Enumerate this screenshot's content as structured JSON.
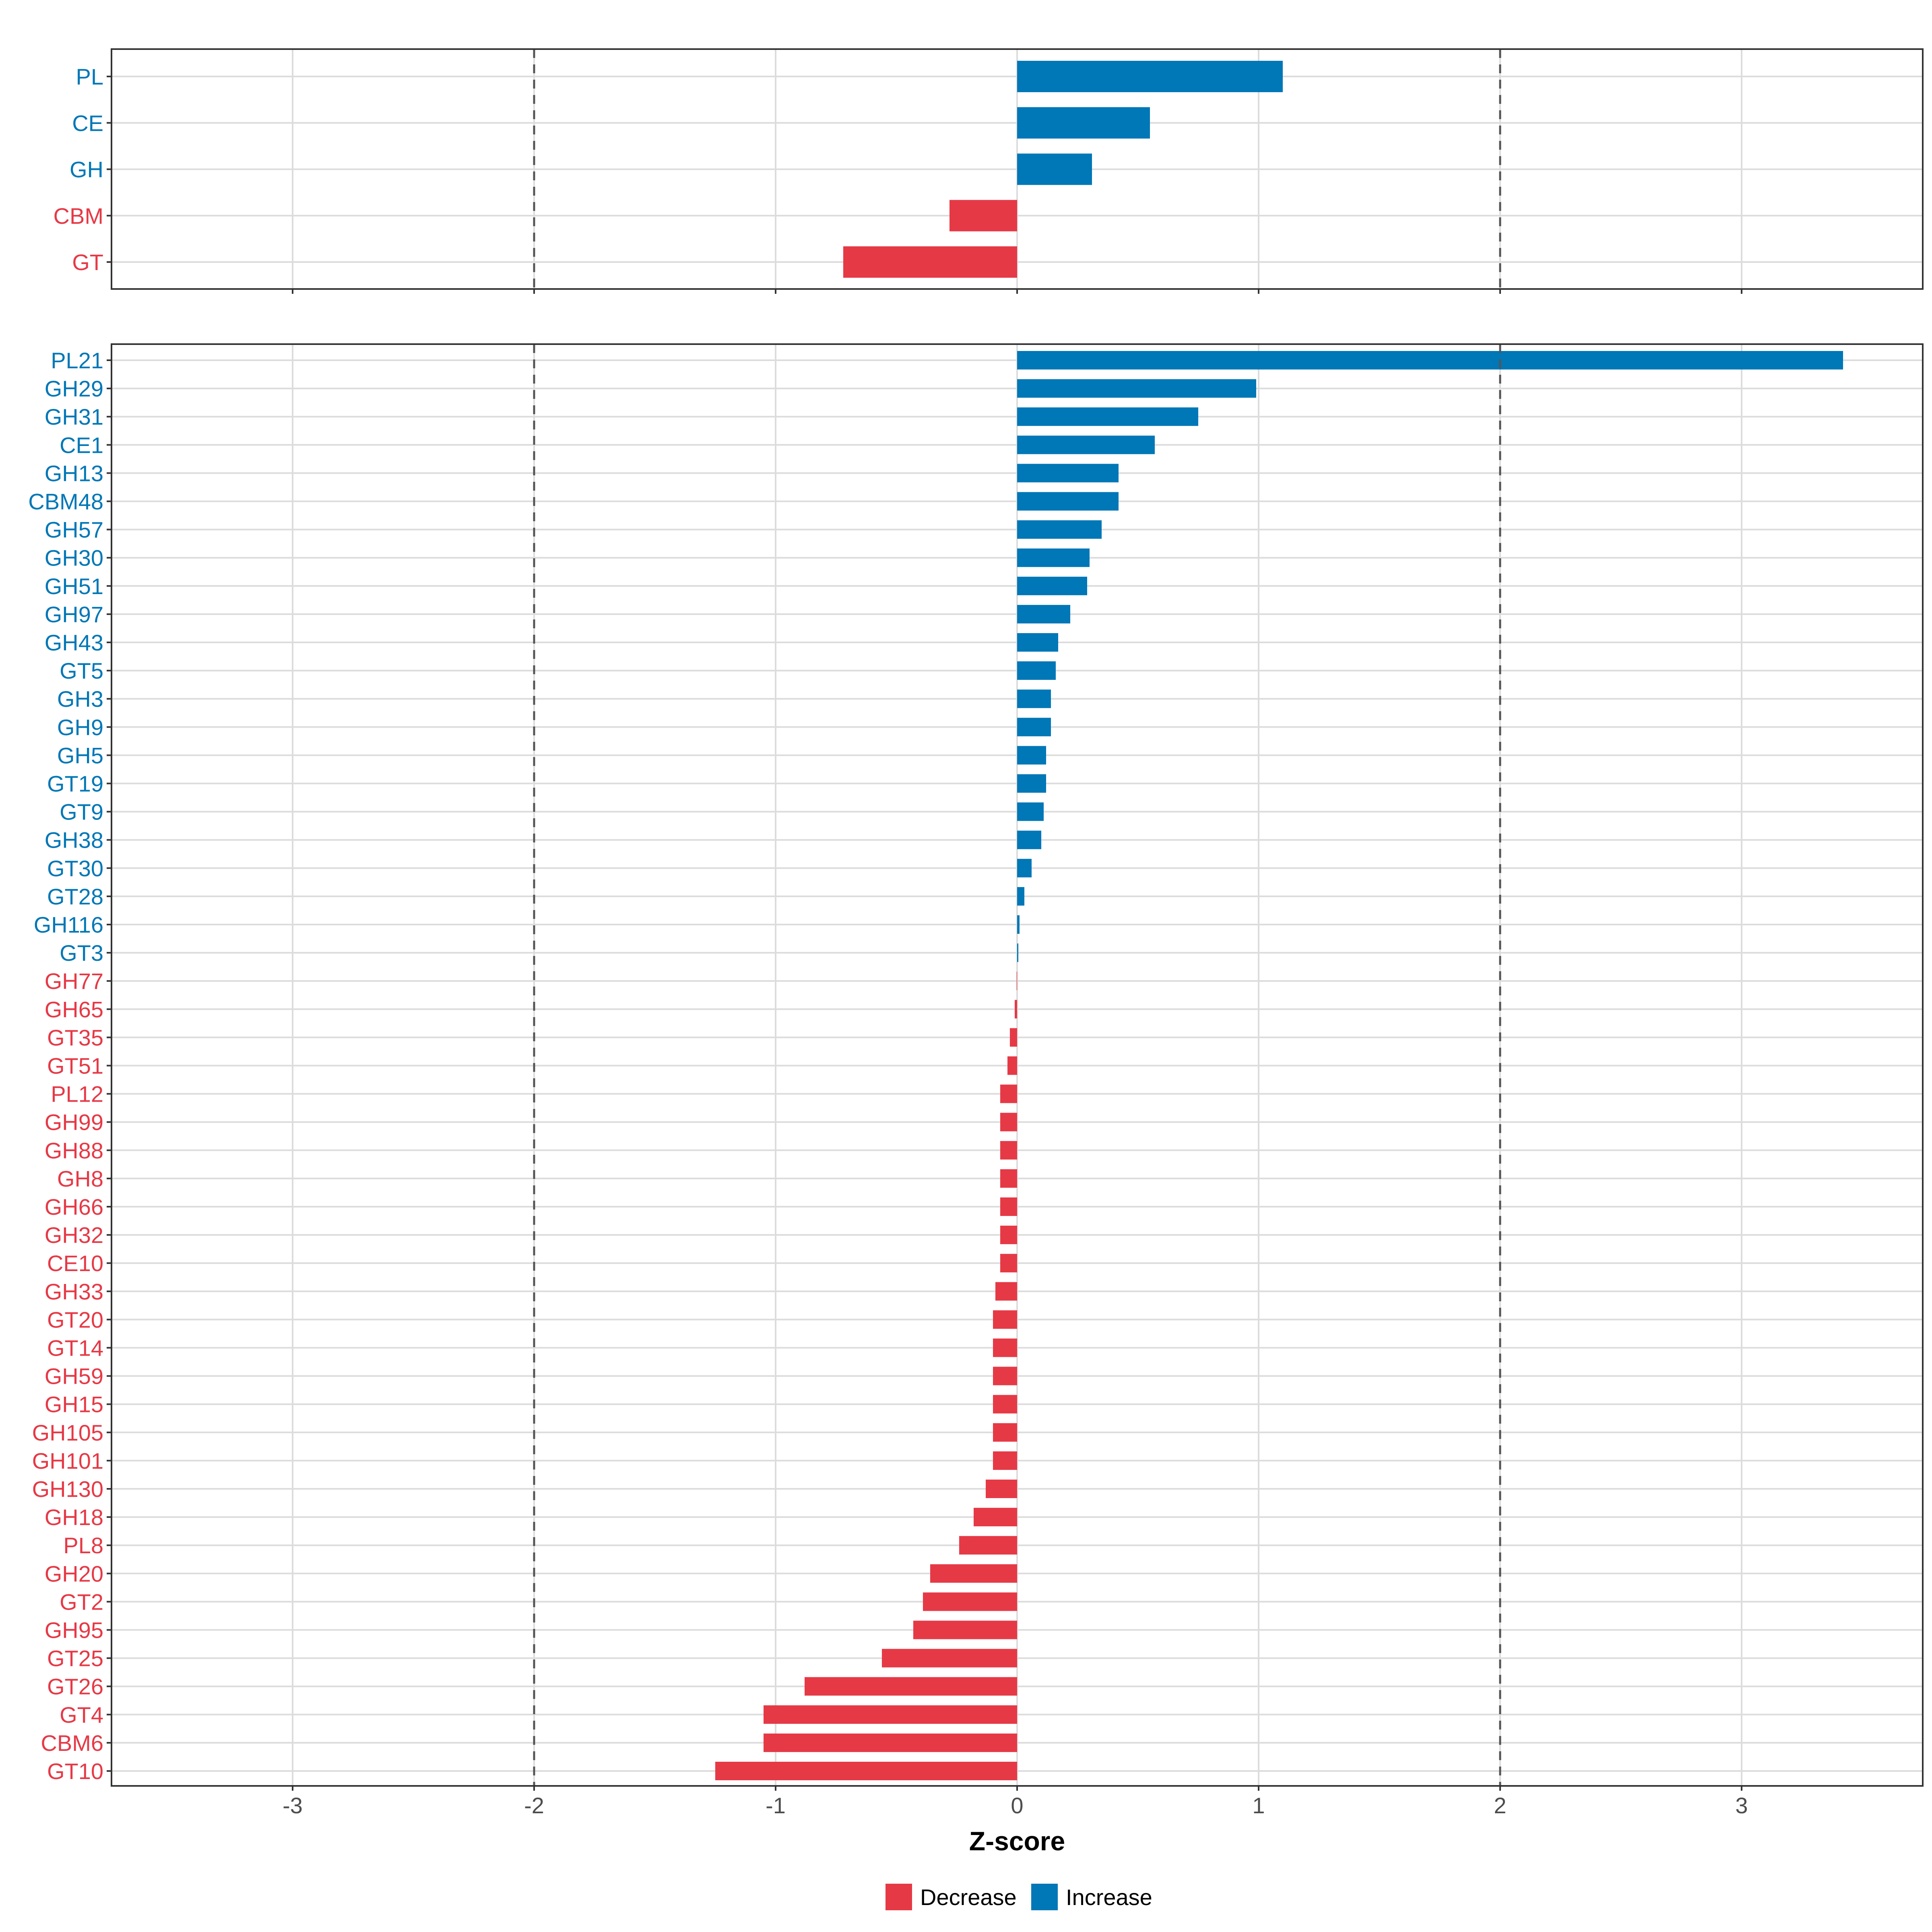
{
  "chart_data": [
    {
      "type": "bar",
      "orientation": "horizontal",
      "panel": "top",
      "categories": [
        "PL",
        "CE",
        "GH",
        "CBM",
        "GT"
      ],
      "values": [
        1.1,
        0.55,
        0.31,
        -0.28,
        -0.72
      ],
      "xlim": [
        -3.75,
        3.75
      ],
      "reference_lines": [
        -2,
        2
      ],
      "grid": true
    },
    {
      "type": "bar",
      "orientation": "horizontal",
      "panel": "bottom",
      "categories": [
        "PL21",
        "GH29",
        "GH31",
        "CE1",
        "GH13",
        "CBM48",
        "GH57",
        "GH30",
        "GH51",
        "GH97",
        "GH43",
        "GT5",
        "GH3",
        "GH9",
        "GH5",
        "GT19",
        "GT9",
        "GH38",
        "GT30",
        "GT28",
        "GH116",
        "GT3",
        "GH77",
        "GH65",
        "GT35",
        "GT51",
        "PL12",
        "GH99",
        "GH88",
        "GH8",
        "GH66",
        "GH32",
        "CE10",
        "GH33",
        "GT20",
        "GT14",
        "GH59",
        "GH15",
        "GH105",
        "GH101",
        "GH130",
        "GH18",
        "PL8",
        "GH20",
        "GT2",
        "GH95",
        "GT25",
        "GT26",
        "GT4",
        "CBM6",
        "GT10"
      ],
      "values": [
        3.42,
        0.99,
        0.75,
        0.57,
        0.42,
        0.42,
        0.35,
        0.3,
        0.29,
        0.22,
        0.17,
        0.16,
        0.14,
        0.14,
        0.12,
        0.12,
        0.11,
        0.1,
        0.06,
        0.03,
        0.01,
        0.005,
        -0.002,
        -0.01,
        -0.03,
        -0.04,
        -0.07,
        -0.07,
        -0.07,
        -0.07,
        -0.07,
        -0.07,
        -0.07,
        -0.09,
        -0.1,
        -0.1,
        -0.1,
        -0.1,
        -0.1,
        -0.1,
        -0.13,
        -0.18,
        -0.24,
        -0.36,
        -0.39,
        -0.43,
        -0.56,
        -0.88,
        -1.05,
        -1.05,
        -1.25
      ],
      "xlim": [
        -3.75,
        3.75
      ],
      "x_ticks": [
        -3,
        -2,
        -1,
        0,
        1,
        2,
        3
      ],
      "x_tick_labels": [
        "-3",
        "-2",
        "-1",
        "0",
        "1",
        "2",
        "3"
      ],
      "reference_lines": [
        -2,
        2
      ],
      "grid": true,
      "xlabel": "Z-score"
    }
  ],
  "legend": {
    "position": "bottom",
    "items": [
      {
        "label": "Decrease",
        "color": "#E63946"
      },
      {
        "label": "Increase",
        "color": "#0077B6"
      }
    ]
  },
  "colors": {
    "decrease": "#E63946",
    "increase": "#0077B6",
    "grid": "#dcdcdc",
    "reference_line": "#555555"
  }
}
